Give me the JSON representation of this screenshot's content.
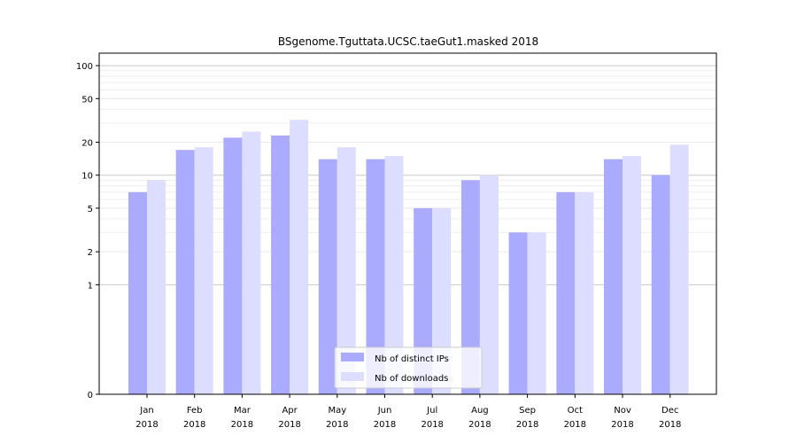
{
  "chart_data": {
    "type": "bar",
    "title": "BSgenome.Tguttata.UCSC.taeGut1.masked 2018",
    "xlabel": "",
    "ylabel": "",
    "y_scale": "symlog",
    "ylim": [
      0,
      130
    ],
    "y_ticks": [
      0,
      1,
      2,
      5,
      10,
      20,
      50,
      100
    ],
    "grid": "horizontal",
    "legend_position": "bottom-center",
    "categories": [
      [
        "Jan",
        "2018"
      ],
      [
        "Feb",
        "2018"
      ],
      [
        "Mar",
        "2018"
      ],
      [
        "Apr",
        "2018"
      ],
      [
        "May",
        "2018"
      ],
      [
        "Jun",
        "2018"
      ],
      [
        "Jul",
        "2018"
      ],
      [
        "Aug",
        "2018"
      ],
      [
        "Sep",
        "2018"
      ],
      [
        "Oct",
        "2018"
      ],
      [
        "Nov",
        "2018"
      ],
      [
        "Dec",
        "2018"
      ]
    ],
    "series": [
      {
        "name": "Nb of distinct IPs",
        "color": "#aaaaff",
        "values": [
          7,
          17,
          22,
          23,
          14,
          14,
          5,
          9,
          3,
          7,
          14,
          10
        ]
      },
      {
        "name": "Nb of downloads",
        "color": "#ddddff",
        "values": [
          9,
          18,
          25,
          32,
          18,
          15,
          5,
          10,
          3,
          7,
          15,
          19
        ]
      }
    ]
  }
}
